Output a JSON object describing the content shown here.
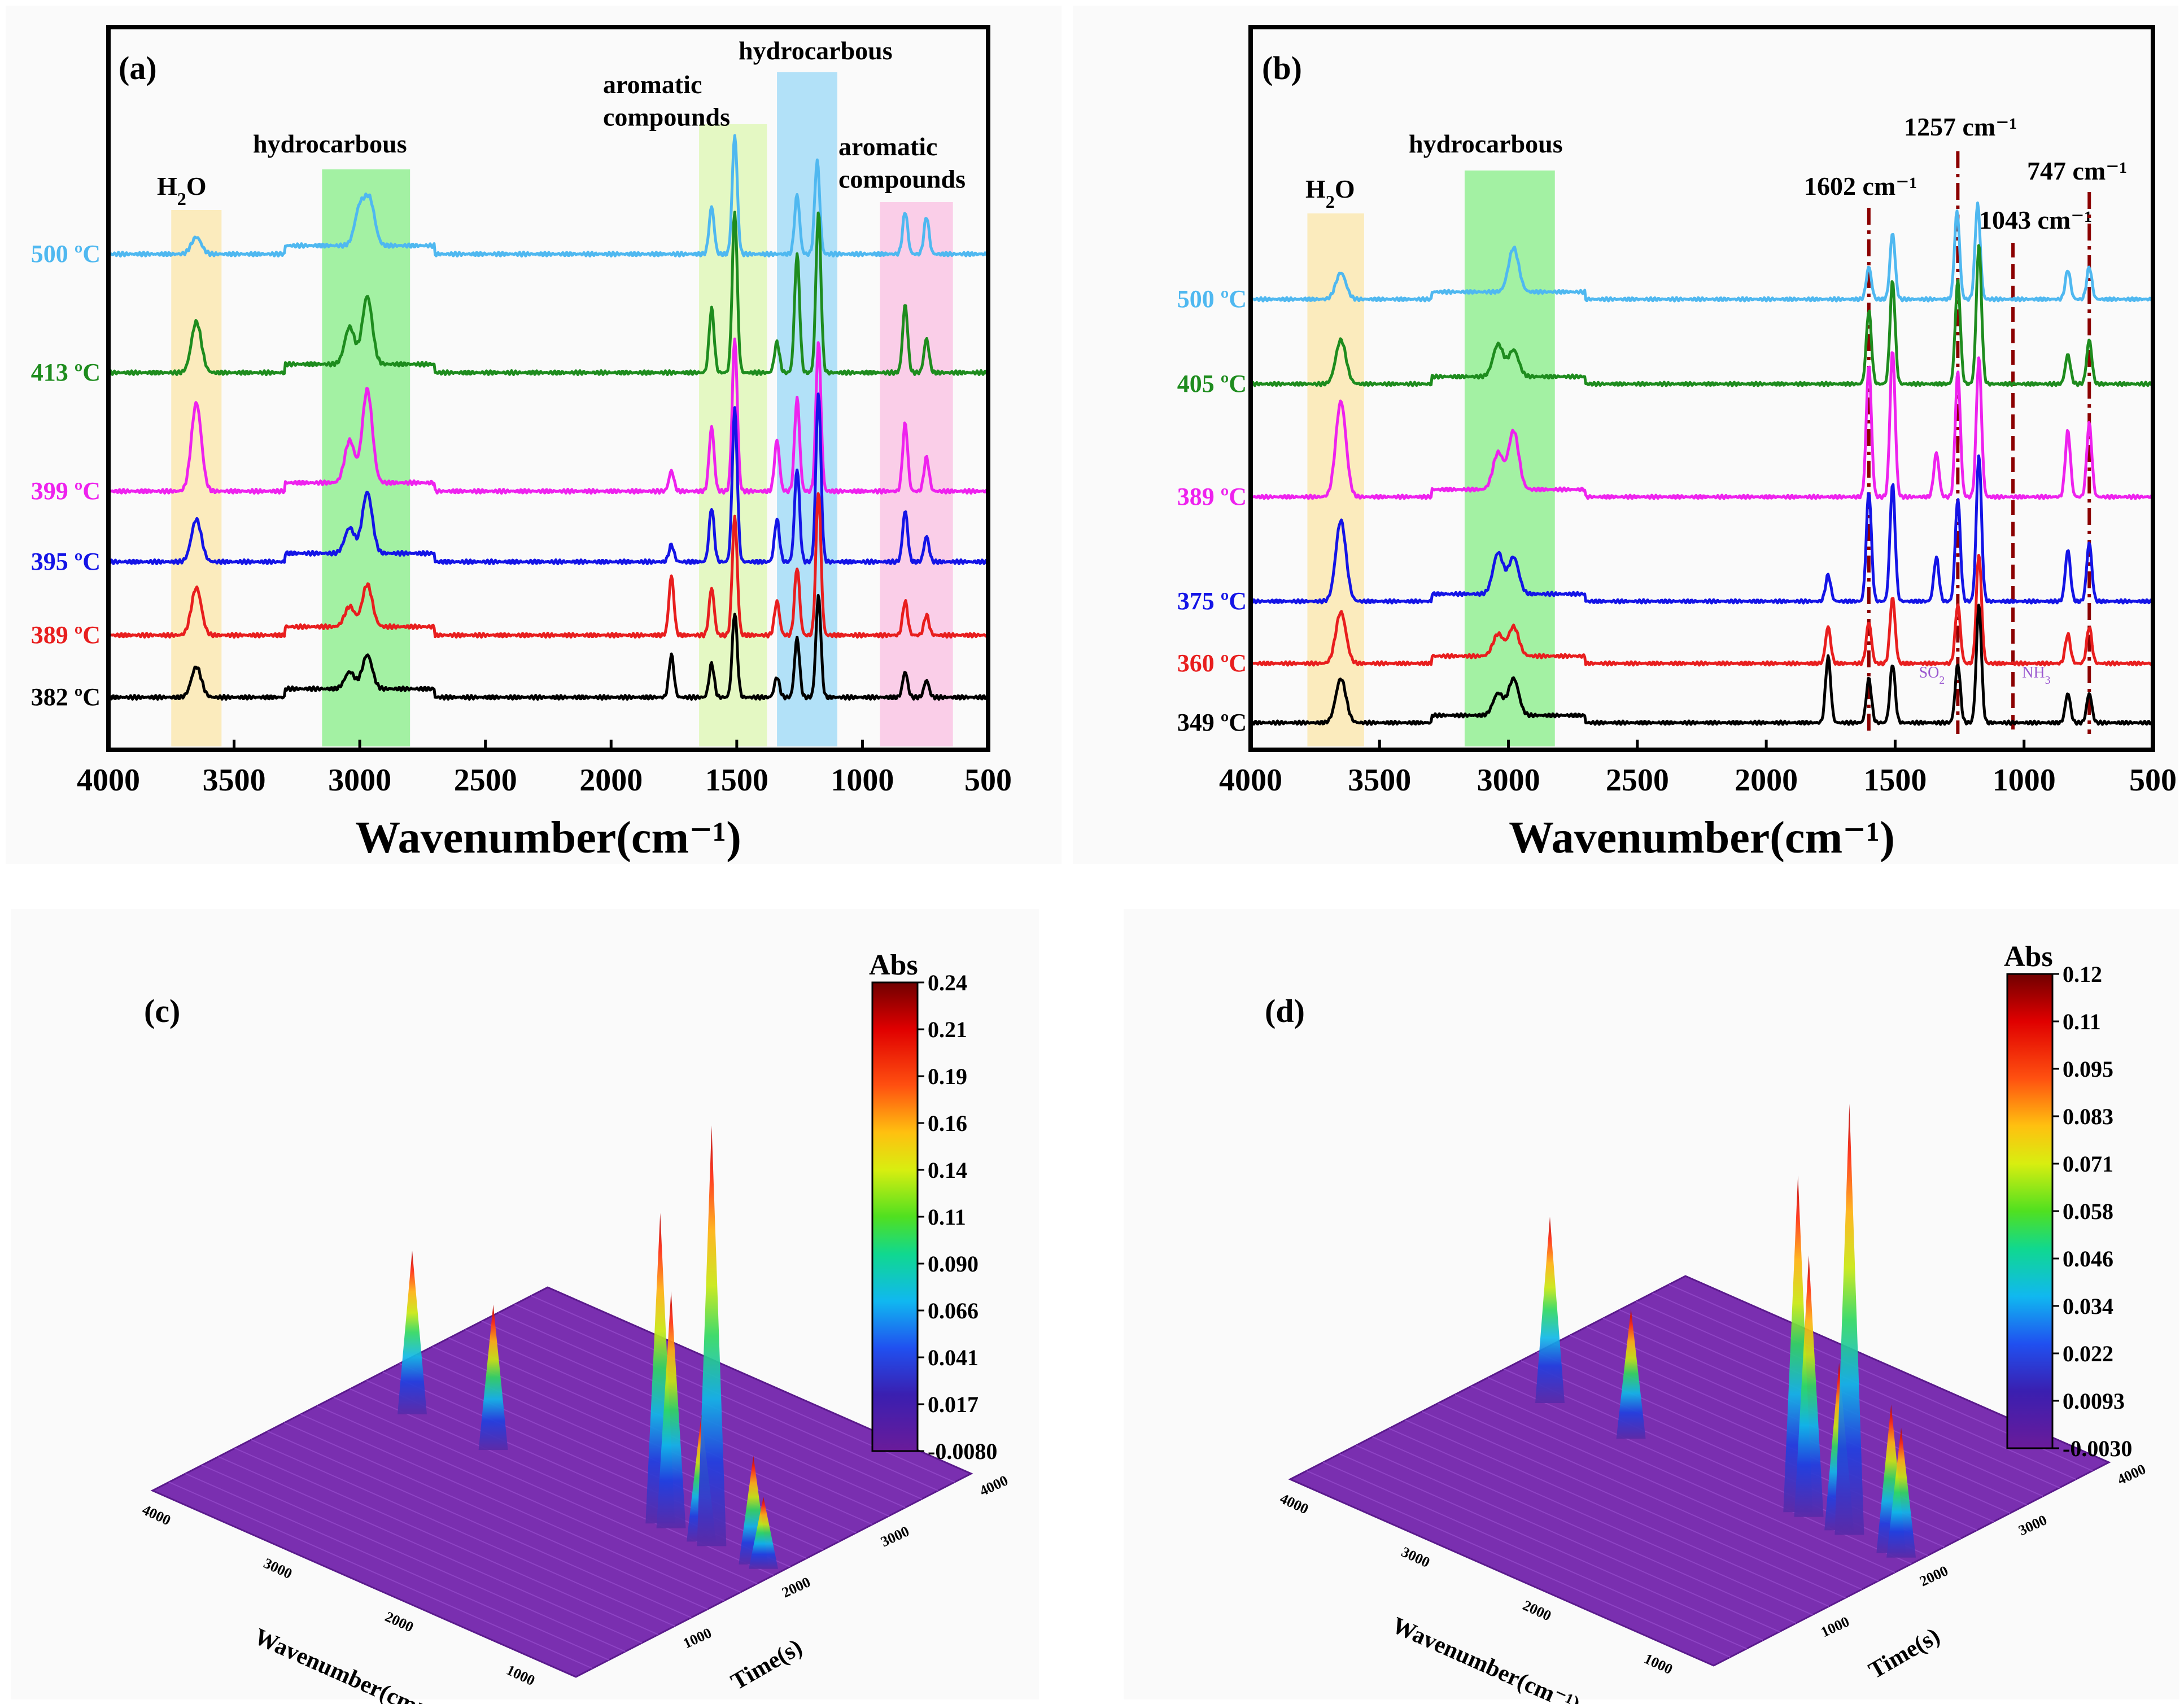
{
  "chart_data": [
    {
      "panel": "(a)",
      "type": "line",
      "xlabel": "Wavenumber(cm⁻¹)",
      "xlim": [
        4000,
        500
      ],
      "x_ticks": [
        "4000",
        "3500",
        "3000",
        "2500",
        "2000",
        "1500",
        "1000",
        "500"
      ],
      "regions": [
        {
          "label_parts": [
            "H",
            "2",
            "O"
          ],
          "from": 3750,
          "to": 3550,
          "color": "#fbe6a8"
        },
        {
          "label_parts": [
            "hydrocarbous"
          ],
          "from": 3150,
          "to": 2800,
          "color": "#86ee86"
        },
        {
          "label_parts": [
            "aromatic",
            "compounds"
          ],
          "from": 1650,
          "to": 1380,
          "color": "#dcf7b0"
        },
        {
          "label_parts": [
            "hydrocarbous"
          ],
          "from": 1340,
          "to": 1100,
          "color": "#99d8f7"
        },
        {
          "label_parts": [
            "aromatic",
            "compounds"
          ],
          "from": 930,
          "to": 640,
          "color": "#f9bfe2"
        }
      ],
      "series": [
        {
          "name": "500 ºC",
          "color": "#4fb8f0",
          "peaks": [
            [
              3650,
              0.1
            ],
            [
              3000,
              0.22
            ],
            [
              2960,
              0.26
            ],
            [
              1600,
              0.28
            ],
            [
              1508,
              0.7
            ],
            [
              1260,
              0.35
            ],
            [
              1180,
              0.55
            ],
            [
              830,
              0.25
            ],
            [
              745,
              0.22
            ]
          ]
        },
        {
          "name": "413 ºC",
          "color": "#1e8c1e",
          "peaks": [
            [
              3650,
              0.3
            ],
            [
              3040,
              0.22
            ],
            [
              2970,
              0.4
            ],
            [
              1600,
              0.38
            ],
            [
              1508,
              0.95
            ],
            [
              1340,
              0.18
            ],
            [
              1260,
              0.7
            ],
            [
              1175,
              0.95
            ],
            [
              830,
              0.4
            ],
            [
              745,
              0.2
            ]
          ]
        },
        {
          "name": "399 ºC",
          "color": "#ee22ee",
          "peaks": [
            [
              3650,
              0.52
            ],
            [
              3040,
              0.25
            ],
            [
              2970,
              0.55
            ],
            [
              1760,
              0.12
            ],
            [
              1600,
              0.38
            ],
            [
              1508,
              0.9
            ],
            [
              1340,
              0.3
            ],
            [
              1260,
              0.55
            ],
            [
              1175,
              0.88
            ],
            [
              830,
              0.4
            ],
            [
              745,
              0.2
            ]
          ]
        },
        {
          "name": "395 ºC",
          "color": "#1414e6",
          "peaks": [
            [
              3650,
              0.25
            ],
            [
              3040,
              0.15
            ],
            [
              2970,
              0.36
            ],
            [
              1760,
              0.1
            ],
            [
              1600,
              0.32
            ],
            [
              1508,
              0.9
            ],
            [
              1340,
              0.25
            ],
            [
              1260,
              0.55
            ],
            [
              1175,
              1.0
            ],
            [
              830,
              0.3
            ],
            [
              745,
              0.15
            ]
          ]
        },
        {
          "name": "389 ºC",
          "color": "#e81e1e",
          "peaks": [
            [
              3650,
              0.28
            ],
            [
              3040,
              0.12
            ],
            [
              2970,
              0.25
            ],
            [
              1760,
              0.35
            ],
            [
              1600,
              0.28
            ],
            [
              1508,
              0.7
            ],
            [
              1340,
              0.2
            ],
            [
              1260,
              0.4
            ],
            [
              1175,
              0.85
            ],
            [
              830,
              0.2
            ],
            [
              745,
              0.12
            ]
          ]
        },
        {
          "name": "382 ºC",
          "color": "#000000",
          "peaks": [
            [
              3650,
              0.18
            ],
            [
              3040,
              0.1
            ],
            [
              2970,
              0.2
            ],
            [
              1760,
              0.25
            ],
            [
              1600,
              0.2
            ],
            [
              1508,
              0.5
            ],
            [
              1340,
              0.12
            ],
            [
              1260,
              0.35
            ],
            [
              1175,
              0.6
            ],
            [
              830,
              0.15
            ],
            [
              745,
              0.1
            ]
          ]
        }
      ]
    },
    {
      "panel": "(b)",
      "type": "line",
      "xlabel": "Wavenumber(cm⁻¹)",
      "xlim": [
        4000,
        500
      ],
      "x_ticks": [
        "4000",
        "3500",
        "3000",
        "2500",
        "2000",
        "1500",
        "1000",
        "500"
      ],
      "regions": [
        {
          "label_parts": [
            "H",
            "2",
            "O"
          ],
          "from": 3780,
          "to": 3560,
          "color": "#fbe6a8"
        },
        {
          "label_parts": [
            "hydrocarbous"
          ],
          "from": 3170,
          "to": 2820,
          "color": "#86ee86"
        }
      ],
      "markers": [
        {
          "label": "1602 cm⁻¹",
          "x": 1602
        },
        {
          "label": "1257 cm⁻¹",
          "x": 1257
        },
        {
          "label": "1043 cm⁻¹",
          "x": 1043
        },
        {
          "label": "747 cm⁻¹",
          "x": 747
        }
      ],
      "gas_labels": [
        {
          "label_parts": [
            "SO",
            "2"
          ],
          "x": 1320
        },
        {
          "label_parts": [
            "NH",
            "3"
          ],
          "x": 920
        }
      ],
      "series": [
        {
          "name": "500 ºC",
          "color": "#4fb8f0",
          "peaks": [
            [
              3650,
              0.18
            ],
            [
              2980,
              0.3
            ],
            [
              1602,
              0.22
            ],
            [
              1510,
              0.45
            ],
            [
              1260,
              0.6
            ],
            [
              1180,
              0.65
            ],
            [
              830,
              0.2
            ],
            [
              747,
              0.22
            ]
          ]
        },
        {
          "name": "405 ºC",
          "color": "#1e8c1e",
          "peaks": [
            [
              3650,
              0.3
            ],
            [
              3040,
              0.22
            ],
            [
              2980,
              0.18
            ],
            [
              1602,
              0.5
            ],
            [
              1510,
              0.7
            ],
            [
              1257,
              0.7
            ],
            [
              1175,
              0.95
            ],
            [
              830,
              0.2
            ],
            [
              747,
              0.3
            ]
          ]
        },
        {
          "name": "389 ºC",
          "color": "#ee22ee",
          "peaks": [
            [
              3650,
              0.65
            ],
            [
              3040,
              0.25
            ],
            [
              2980,
              0.4
            ],
            [
              1602,
              0.9
            ],
            [
              1510,
              1.0
            ],
            [
              1340,
              0.3
            ],
            [
              1257,
              0.85
            ],
            [
              1175,
              0.95
            ],
            [
              830,
              0.45
            ],
            [
              747,
              0.5
            ]
          ]
        },
        {
          "name": "375 ºC",
          "color": "#1414e6",
          "peaks": [
            [
              3650,
              0.55
            ],
            [
              3040,
              0.28
            ],
            [
              2980,
              0.25
            ],
            [
              1760,
              0.18
            ],
            [
              1602,
              0.75
            ],
            [
              1510,
              0.8
            ],
            [
              1340,
              0.3
            ],
            [
              1257,
              0.7
            ],
            [
              1175,
              1.0
            ],
            [
              830,
              0.35
            ],
            [
              747,
              0.4
            ]
          ]
        },
        {
          "name": "360 ºC",
          "color": "#e81e1e",
          "peaks": [
            [
              3650,
              0.35
            ],
            [
              3040,
              0.15
            ],
            [
              2980,
              0.2
            ],
            [
              1760,
              0.25
            ],
            [
              1602,
              0.28
            ],
            [
              1510,
              0.45
            ],
            [
              1257,
              0.4
            ],
            [
              1175,
              0.75
            ],
            [
              830,
              0.2
            ],
            [
              747,
              0.25
            ]
          ]
        },
        {
          "name": "349 ºC",
          "color": "#000000",
          "peaks": [
            [
              3650,
              0.3
            ],
            [
              3040,
              0.15
            ],
            [
              2980,
              0.25
            ],
            [
              1760,
              0.45
            ],
            [
              1602,
              0.3
            ],
            [
              1510,
              0.4
            ],
            [
              1257,
              0.4
            ],
            [
              1175,
              0.8
            ],
            [
              830,
              0.2
            ],
            [
              747,
              0.2
            ]
          ]
        }
      ]
    },
    {
      "panel": "(c)",
      "type": "surface3d",
      "xlabel": "Wavenumber(cm⁻¹)",
      "ylabel": "Time(s)",
      "x_ticks": [
        "4000",
        "3000",
        "2000",
        "1000"
      ],
      "y_ticks": [
        "1000",
        "2000",
        "3000",
        "4000"
      ],
      "colorbar": {
        "title": "Abs",
        "ticks": [
          "0.24",
          "0.21",
          "0.19",
          "0.16",
          "0.14",
          "0.11",
          "0.090",
          "0.066",
          "0.041",
          "0.017",
          "-0.0080"
        ]
      },
      "peaks": [
        [
          3650,
          0.08
        ],
        [
          2980,
          0.07
        ],
        [
          1600,
          0.16
        ],
        [
          1510,
          0.12
        ],
        [
          1260,
          0.06
        ],
        [
          1175,
          0.22
        ],
        [
          830,
          0.05
        ],
        [
          747,
          0.03
        ]
      ]
    },
    {
      "panel": "(d)",
      "type": "surface3d",
      "xlabel": "Wavenumber(cm⁻¹)",
      "ylabel": "Time(s)",
      "x_ticks": [
        "4000",
        "3000",
        "2000",
        "1000"
      ],
      "y_ticks": [
        "1000",
        "2000",
        "3000",
        "4000"
      ],
      "colorbar": {
        "title": "Abs",
        "ticks": [
          "0.12",
          "0.11",
          "0.095",
          "0.083",
          "0.071",
          "0.058",
          "0.046",
          "0.034",
          "0.022",
          "0.0093",
          "-0.0030"
        ]
      },
      "peaks": [
        [
          3650,
          0.045
        ],
        [
          2980,
          0.03
        ],
        [
          1600,
          0.085
        ],
        [
          1510,
          0.065
        ],
        [
          1260,
          0.04
        ],
        [
          1175,
          0.11
        ],
        [
          830,
          0.035
        ],
        [
          747,
          0.03
        ]
      ]
    }
  ]
}
